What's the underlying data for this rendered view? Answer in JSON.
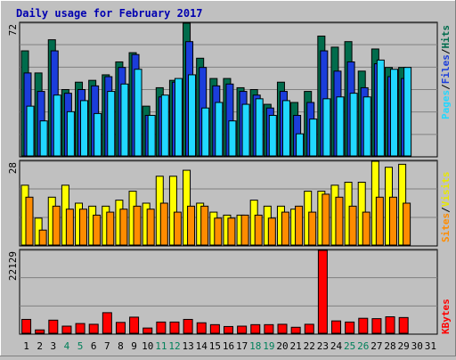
{
  "chart_data": {
    "type": "bar",
    "title": "Daily usage for February 2017",
    "x": [
      1,
      2,
      3,
      4,
      5,
      6,
      7,
      8,
      9,
      10,
      11,
      12,
      13,
      14,
      15,
      16,
      17,
      18,
      19,
      20,
      21,
      22,
      23,
      24,
      25,
      26,
      27,
      28,
      29,
      30,
      31
    ],
    "weekend_days": [
      4,
      5,
      11,
      12,
      18,
      19,
      25,
      26
    ],
    "panels": [
      {
        "name": "hits-files-pages",
        "max_label": "72",
        "ylim": [
          0,
          72
        ],
        "series": [
          {
            "name": "Hits",
            "color": "#006c4c",
            "values": [
              57,
              45,
              63,
              36,
              40,
              41,
              44,
              51,
              56,
              27,
              37,
              41,
              72,
              53,
              42,
              42,
              37,
              36,
              28,
              40,
              29,
              35,
              65,
              59,
              62,
              46,
              58,
              48,
              48,
              0,
              0
            ]
          },
          {
            "name": "Files",
            "color": "#1b3ddb",
            "values": [
              45,
              35,
              57,
              34,
              36,
              38,
              43,
              48,
              55,
              22,
              32,
              40,
              62,
              48,
              38,
              39,
              35,
              33,
              26,
              35,
              22,
              29,
              57,
              46,
              51,
              37,
              50,
              43,
              42,
              0,
              0
            ]
          },
          {
            "name": "Pages",
            "color": "#21d8ff",
            "values": [
              27,
              19,
              33,
              24,
              30,
              23,
              35,
              39,
              47,
              22,
              33,
              42,
              44,
              26,
              29,
              19,
              28,
              31,
              22,
              30,
              12,
              20,
              31,
              32,
              34,
              32,
              52,
              47,
              48,
              0,
              0
            ]
          }
        ]
      },
      {
        "name": "sites-visits",
        "max_label": "28",
        "ylim": [
          0,
          28
        ],
        "series": [
          {
            "name": "Visits",
            "color": "#ffff00",
            "values": [
              20,
              9,
              16,
              20,
              14,
              13,
              13,
              15,
              18,
              14,
              23,
              23,
              25,
              14,
              11,
              10,
              10,
              15,
              13,
              13,
              12,
              18,
              18,
              20,
              21,
              21,
              28,
              26,
              27,
              0,
              0
            ]
          },
          {
            "name": "Sites",
            "color": "#ff8c00",
            "values": [
              16,
              5,
              13,
              12,
              12,
              10,
              11,
              12,
              13,
              12,
              14,
              11,
              13,
              13,
              9,
              9,
              10,
              10,
              9,
              11,
              13,
              11,
              17,
              16,
              13,
              11,
              16,
              16,
              14,
              0,
              0
            ]
          }
        ]
      },
      {
        "name": "kbytes",
        "max_label": "22129",
        "ylim": [
          0,
          22129
        ],
        "series": [
          {
            "name": "KBytes",
            "color": "#ff0000",
            "values": [
              3700,
              900,
              3500,
              1900,
              2600,
              2400,
              5500,
              2900,
              4300,
              1400,
              3000,
              3000,
              3700,
              2800,
              2300,
              1800,
              1900,
              2300,
              2300,
              2400,
              1600,
              2400,
              22129,
              3300,
              3000,
              4000,
              3900,
              4400,
              4200,
              0,
              0
            ]
          }
        ]
      }
    ],
    "right_labels": [
      {
        "text": "Hits",
        "color": "#006c4c"
      },
      {
        "text": "Files",
        "color": "#1b3ddb"
      },
      {
        "text": "Pages",
        "color": "#21d8ff"
      },
      {
        "text": "Visits",
        "color": "#e8e800"
      },
      {
        "text": "Sites",
        "color": "#ff8c00"
      },
      {
        "text": "KBytes",
        "color": "#ff0000"
      }
    ],
    "title_color": "#0000b0",
    "day_color": "#000000",
    "weekend_color": "#00805a",
    "separator": "/",
    "grid": true
  }
}
